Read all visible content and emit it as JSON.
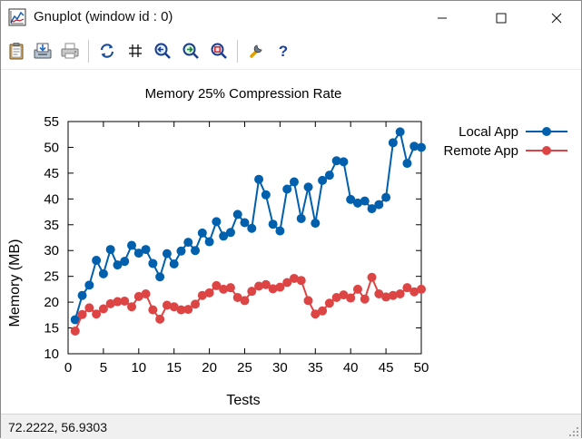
{
  "window": {
    "title": "Gnuplot (window id : 0)",
    "minimize_icon": "minimize-icon",
    "maximize_icon": "maximize-icon",
    "close_icon": "close-icon"
  },
  "toolbar": {
    "buttons": [
      {
        "name": "clipboard-copy-button",
        "icon": "clipboard-icon"
      },
      {
        "name": "print-save-button",
        "icon": "save-icon"
      },
      {
        "name": "print-button",
        "icon": "printer-icon"
      },
      {
        "name": "replot-button",
        "icon": "replot-icon"
      },
      {
        "name": "grid-button",
        "icon": "grid-icon"
      },
      {
        "name": "zoom-previous-button",
        "icon": "zoom-prev-icon"
      },
      {
        "name": "zoom-next-button",
        "icon": "zoom-next-icon"
      },
      {
        "name": "autoscale-button",
        "icon": "autoscale-icon"
      },
      {
        "name": "options-button",
        "icon": "wrench-icon"
      },
      {
        "name": "help-button",
        "icon": "help-icon"
      }
    ]
  },
  "status": {
    "coords": "72.2222,  56.9303"
  },
  "chart_data": {
    "type": "line",
    "title": "Memory 25% Compression Rate",
    "xlabel": "Tests",
    "ylabel": "Memory (MB)",
    "xlim": [
      0,
      50
    ],
    "ylim": [
      10,
      55
    ],
    "xticks": [
      0,
      5,
      10,
      15,
      20,
      25,
      30,
      35,
      40,
      45,
      50
    ],
    "yticks": [
      10,
      15,
      20,
      25,
      30,
      35,
      40,
      45,
      50,
      55
    ],
    "grid": false,
    "legend": "top-right-outside",
    "x": [
      1,
      2,
      3,
      4,
      5,
      6,
      7,
      8,
      9,
      10,
      11,
      12,
      13,
      14,
      15,
      16,
      17,
      18,
      19,
      20,
      21,
      22,
      23,
      24,
      25,
      26,
      27,
      28,
      29,
      30,
      31,
      32,
      33,
      34,
      35,
      36,
      37,
      38,
      39,
      40,
      41,
      42,
      43,
      44,
      45,
      46,
      47,
      48,
      49,
      50
    ],
    "series": [
      {
        "name": "Local App",
        "color": "#0060ad",
        "values": [
          16.6,
          21.3,
          23.3,
          28.1,
          25.5,
          30.2,
          27.2,
          27.9,
          31.0,
          29.5,
          30.2,
          27.5,
          24.9,
          29.4,
          27.4,
          29.9,
          31.6,
          30.0,
          33.4,
          31.7,
          35.6,
          32.8,
          33.5,
          37.0,
          35.4,
          34.3,
          43.8,
          40.8,
          35.1,
          33.8,
          41.9,
          43.3,
          36.2,
          42.3,
          35.3,
          43.6,
          44.6,
          47.4,
          47.2,
          39.9,
          39.2,
          39.6,
          38.1,
          38.9,
          40.3,
          50.9,
          53.0,
          46.9,
          50.2,
          50.0
        ]
      },
      {
        "name": "Remote App",
        "color": "#dd4444",
        "values": [
          14.4,
          17.6,
          18.9,
          17.7,
          18.7,
          19.7,
          20.1,
          20.2,
          19.1,
          21.1,
          21.6,
          18.5,
          16.7,
          19.4,
          19.1,
          18.5,
          18.6,
          19.6,
          21.3,
          21.8,
          23.2,
          22.5,
          22.8,
          20.9,
          20.3,
          22.1,
          23.1,
          23.4,
          22.6,
          22.9,
          23.8,
          24.6,
          24.2,
          20.3,
          17.7,
          18.3,
          19.8,
          20.9,
          21.4,
          20.8,
          22.5,
          20.6,
          24.8,
          21.6,
          21.0,
          21.3,
          21.6,
          22.8,
          22.0,
          22.5
        ]
      }
    ]
  }
}
